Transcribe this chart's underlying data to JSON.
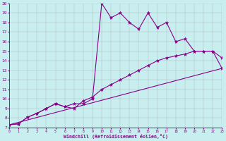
{
  "xlabel": "Windchill (Refroidissement éolien,°C)",
  "xlim": [
    0,
    23
  ],
  "ylim": [
    7,
    20
  ],
  "xticks": [
    0,
    1,
    2,
    3,
    4,
    5,
    6,
    7,
    8,
    9,
    10,
    11,
    12,
    13,
    14,
    15,
    16,
    17,
    18,
    19,
    20,
    21,
    22,
    23
  ],
  "yticks": [
    7,
    8,
    9,
    10,
    11,
    12,
    13,
    14,
    15,
    16,
    17,
    18,
    19,
    20
  ],
  "bg_color": "#c8eef0",
  "line_color": "#880088",
  "grid_color": "#aaaaaa",
  "curve1_x": [
    0,
    1,
    2,
    3,
    4,
    5,
    6,
    7,
    8,
    9,
    10,
    11,
    12,
    13,
    14,
    15,
    16,
    17,
    18,
    19,
    20,
    21,
    22,
    23
  ],
  "curve1_y": [
    7.3,
    7.4,
    8.1,
    8.5,
    9.0,
    9.5,
    9.2,
    9.5,
    9.5,
    10.0,
    20.0,
    18.5,
    19.0,
    18.0,
    17.3,
    19.0,
    17.5,
    18.0,
    16.0,
    16.3,
    15.0,
    15.0,
    15.0,
    14.3
  ],
  "curve2_x": [
    0,
    1,
    2,
    3,
    4,
    5,
    6,
    7,
    8,
    9,
    10,
    11,
    12,
    13,
    14,
    15,
    16,
    17,
    18,
    19,
    20,
    21,
    22,
    23
  ],
  "curve2_y": [
    7.3,
    7.4,
    8.1,
    8.5,
    9.0,
    9.5,
    9.2,
    9.0,
    9.8,
    10.2,
    11.0,
    11.5,
    12.0,
    12.5,
    13.0,
    13.5,
    14.0,
    14.3,
    14.5,
    14.7,
    15.0,
    15.0,
    15.0,
    13.2
  ],
  "curve3_x": [
    0,
    23
  ],
  "curve3_y": [
    7.3,
    13.2
  ],
  "marker": "*",
  "markersize": 3.5,
  "linewidth": 0.8
}
